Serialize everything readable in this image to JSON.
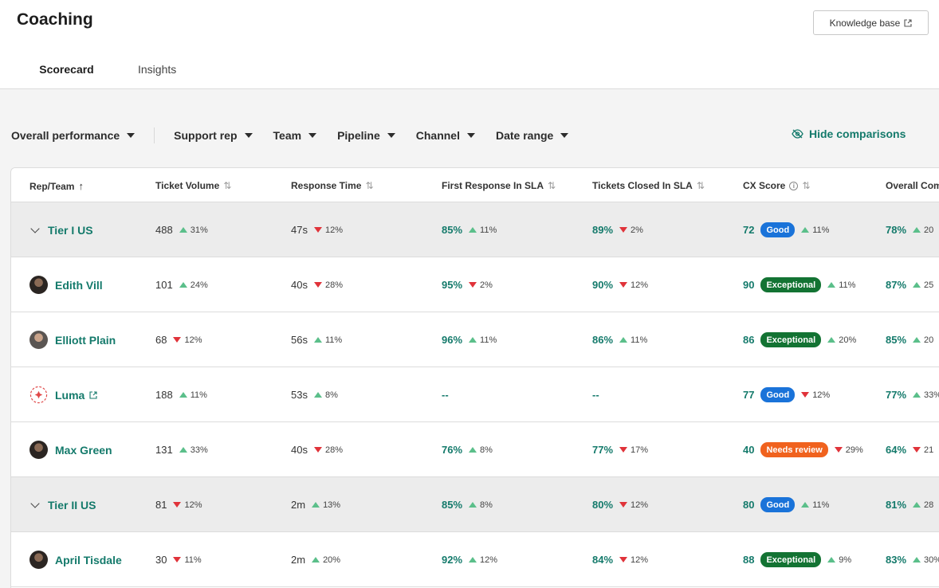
{
  "header": {
    "title": "Coaching",
    "kb_label": "Knowledge base"
  },
  "tabs": [
    {
      "label": "Scorecard",
      "active": true
    },
    {
      "label": "Insights",
      "active": false
    }
  ],
  "filters": [
    "Overall performance",
    "Support rep",
    "Team",
    "Pipeline",
    "Channel",
    "Date range"
  ],
  "hide_comparisons": "Hide comparisons",
  "columns": [
    "Rep/Team",
    "Ticket Volume",
    "Response Time",
    "First Response In SLA",
    "Tickets Closed In SLA",
    "CX Score",
    "Overall Com"
  ],
  "rows": [
    {
      "type": "group",
      "name": "Tier I US",
      "volume": "488",
      "volume_delta": "31%",
      "volume_dir": "up",
      "response": "47s",
      "response_delta": "12%",
      "response_dir": "down",
      "frsla": "85%",
      "frsla_delta": "11%",
      "frsla_dir": "up",
      "tcsla": "89%",
      "tcsla_delta": "2%",
      "tcsla_dir": "down",
      "cx": "72",
      "badge": "Good",
      "badge_kind": "good",
      "cx_delta": "11%",
      "cx_dir": "up",
      "overall": "78%",
      "overall_delta": "20",
      "overall_dir": "up"
    },
    {
      "type": "rep",
      "name": "Edith Vill",
      "avatar": "dark",
      "volume": "101",
      "volume_delta": "24%",
      "volume_dir": "up",
      "response": "40s",
      "response_delta": "28%",
      "response_dir": "down",
      "frsla": "95%",
      "frsla_delta": "2%",
      "frsla_dir": "down",
      "tcsla": "90%",
      "tcsla_delta": "12%",
      "tcsla_dir": "down",
      "cx": "90",
      "badge": "Exceptional",
      "badge_kind": "exc",
      "cx_delta": "11%",
      "cx_dir": "up",
      "overall": "87%",
      "overall_delta": "25",
      "overall_dir": "up"
    },
    {
      "type": "rep",
      "name": "Elliott Plain",
      "avatar": "light",
      "volume": "68",
      "volume_delta": "12%",
      "volume_dir": "down",
      "response": "56s",
      "response_delta": "11%",
      "response_dir": "up",
      "frsla": "96%",
      "frsla_delta": "11%",
      "frsla_dir": "up",
      "tcsla": "86%",
      "tcsla_delta": "11%",
      "tcsla_dir": "up",
      "cx": "86",
      "badge": "Exceptional",
      "badge_kind": "exc",
      "cx_delta": "20%",
      "cx_dir": "up",
      "overall": "85%",
      "overall_delta": "20",
      "overall_dir": "up"
    },
    {
      "type": "bot",
      "name": "Luma",
      "avatar": "bot",
      "volume": "188",
      "volume_delta": "11%",
      "volume_dir": "up",
      "response": "53s",
      "response_delta": "8%",
      "response_dir": "up",
      "frsla": "--",
      "frsla_delta": "",
      "frsla_dir": "",
      "tcsla": "--",
      "tcsla_delta": "",
      "tcsla_dir": "",
      "cx": "77",
      "badge": "Good",
      "badge_kind": "good",
      "cx_delta": "12%",
      "cx_dir": "down",
      "overall": "77%",
      "overall_delta": "33%",
      "overall_dir": "up"
    },
    {
      "type": "rep",
      "name": "Max Green",
      "avatar": "dark",
      "volume": "131",
      "volume_delta": "33%",
      "volume_dir": "up",
      "response": "40s",
      "response_delta": "28%",
      "response_dir": "down",
      "frsla": "76%",
      "frsla_delta": "8%",
      "frsla_dir": "up",
      "tcsla": "77%",
      "tcsla_delta": "17%",
      "tcsla_dir": "down",
      "cx": "40",
      "badge": "Needs review",
      "badge_kind": "rev",
      "cx_delta": "29%",
      "cx_dir": "down",
      "overall": "64%",
      "overall_delta": "21",
      "overall_dir": "down"
    },
    {
      "type": "group",
      "name": "Tier II US",
      "volume": "81",
      "volume_delta": "12%",
      "volume_dir": "down",
      "response": "2m",
      "response_delta": "13%",
      "response_dir": "up",
      "frsla": "85%",
      "frsla_delta": "8%",
      "frsla_dir": "up",
      "tcsla": "80%",
      "tcsla_delta": "12%",
      "tcsla_dir": "down",
      "cx": "80",
      "badge": "Good",
      "badge_kind": "good",
      "cx_delta": "11%",
      "cx_dir": "up",
      "overall": "81%",
      "overall_delta": "28",
      "overall_dir": "up"
    },
    {
      "type": "rep",
      "name": "April Tisdale",
      "avatar": "dark",
      "volume": "30",
      "volume_delta": "11%",
      "volume_dir": "down",
      "response": "2m",
      "response_delta": "20%",
      "response_dir": "up",
      "frsla": "92%",
      "frsla_delta": "12%",
      "frsla_dir": "up",
      "tcsla": "84%",
      "tcsla_delta": "12%",
      "tcsla_dir": "down",
      "cx": "88",
      "badge": "Exceptional",
      "badge_kind": "exc",
      "cx_delta": "9%",
      "cx_dir": "up",
      "overall": "83%",
      "overall_delta": "30%",
      "overall_dir": "up"
    }
  ]
}
